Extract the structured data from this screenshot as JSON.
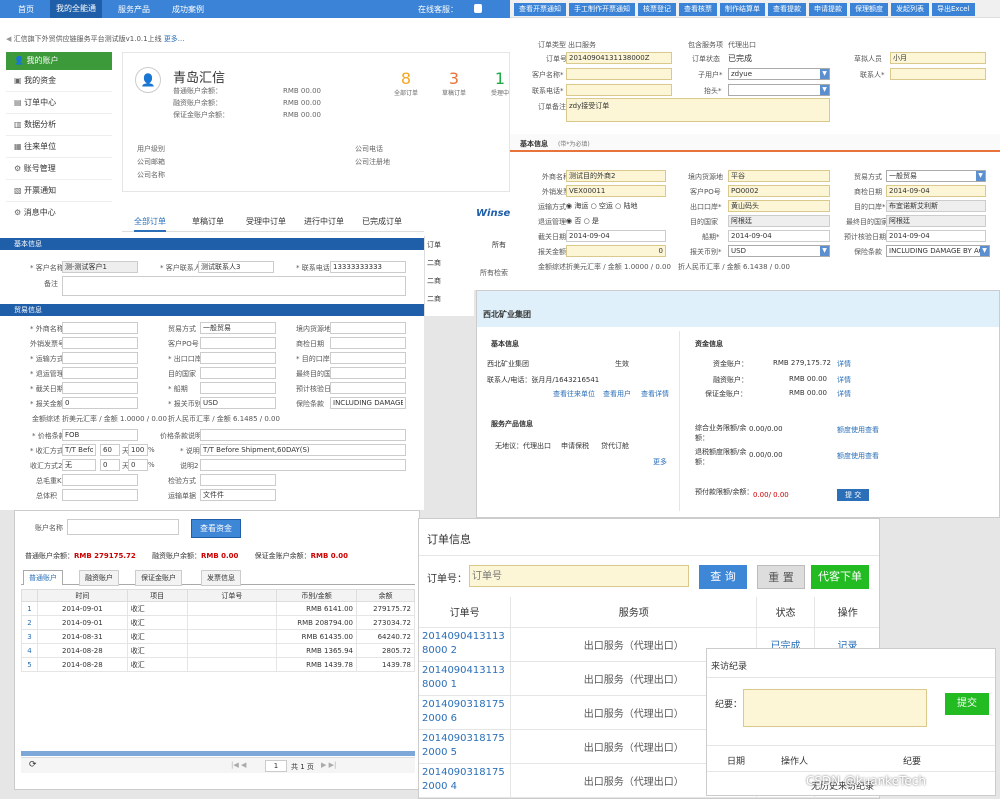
{
  "nav": {
    "items": [
      "首页",
      "我的全能通",
      "服务产品",
      "成功案例"
    ],
    "online": "在线客服："
  },
  "notice": {
    "text": "汇信旗下外贸供应链服务平台测试版v1.0.1上线",
    "more": "更多..."
  },
  "sidebar": {
    "items": [
      "我的账户",
      "我的资金",
      "订单中心",
      "数据分析",
      "往来单位",
      "账号管理",
      "开票通知",
      "消息中心"
    ]
  },
  "profile": {
    "name": "青岛汇信",
    "balances": [
      {
        "label": "普通账户余额：",
        "value": "RMB 00.00"
      },
      {
        "label": "融资账户余额：",
        "value": "RMB 00.00"
      },
      {
        "label": "保证金账户余额：",
        "value": "RMB 00.00"
      }
    ],
    "stats": [
      {
        "num": "8",
        "label": "全部订单"
      },
      {
        "num": "3",
        "label": "草稿订单"
      },
      {
        "num": "1",
        "label": "受理中"
      }
    ],
    "fields_left": [
      "用户级别",
      "公司邮箱",
      "公司名称"
    ],
    "fields_right": [
      "公司电话",
      "公司注册地"
    ]
  },
  "order_tabs": [
    "全部订单",
    "草稿订单",
    "受理中订单",
    "进行中订单",
    "已完成订单"
  ],
  "toolbar": {
    "buttons": [
      "查看开票通知",
      "手工制作开票通知",
      "核票登记",
      "查看核票",
      "制作结算单",
      "查看提款",
      "申请提款",
      "保理额度",
      "发起列表",
      "导出Excel"
    ]
  },
  "order_info": {
    "r1": {
      "type_l": "订单类型",
      "type_v": "出口服务",
      "svc_l": "包含服务项",
      "svc_v": "代理出口"
    },
    "no_l": "订单号",
    "no_v": "20140904131138000Z",
    "status_l": "订单状态",
    "status_v": "已完成",
    "creator_l": "草拟人员",
    "creator_v": "小月",
    "cust_l": "客户名称*",
    "sub_l": "子用户*",
    "sub_v": "zdyue",
    "contact_l": "联系人*",
    "phone_l": "联系电话*",
    "title_l": "抬头*",
    "remark_l": "订单备注",
    "remark_v": "zdy接受订单"
  },
  "basic_r": {
    "title": "基本信息",
    "sub": "(带*为必填)",
    "rows": [
      [
        "外商名称*",
        "测试目的外商2",
        "境内货源地",
        "平谷",
        "贸易方式",
        "一般贸易"
      ],
      [
        "外销发票号",
        "VEX00011",
        "客户PO号",
        "PO0002",
        "商检日期",
        "2014-09-04"
      ],
      [
        "运输方式*",
        "",
        "出口口岸*",
        "黄山码头",
        "目的口岸*",
        "布宜诺斯艾利斯"
      ],
      [
        "退运管理*",
        "",
        "目的国家",
        "阿根廷",
        "最终目的国家",
        "阿根廷"
      ],
      [
        "截关日期*",
        "2014-09-04",
        "船期*",
        "2014-09-04",
        "预计核验日期",
        "2014-09-04"
      ],
      [
        "报关金额*",
        "0",
        "报关币别*",
        "USD",
        "保险条款",
        "INCLUDING DAMAGE BY AC"
      ]
    ],
    "transport": [
      "海运",
      "空运",
      "陆地"
    ],
    "yesno": [
      "否",
      "是"
    ],
    "summary": [
      "金额综述",
      "折美元汇率 / 金额 1.0000 / 0.00",
      "折人民币汇率 / 金额 6.1438 / 0.00"
    ]
  },
  "left_form": {
    "basic": "基本信息",
    "cust_l": "* 客户名称",
    "cust_v": "测-测试客户1",
    "cont_l": "* 客户联系人",
    "cont_v": "测试联系人3",
    "phone_l": "* 联系电话",
    "phone_v": "13333333333",
    "remark_l": "备注",
    "trade": "贸易信息",
    "rows": [
      [
        "* 外商名称",
        "",
        "贸易方式",
        "一般贸易",
        "境内货源地",
        ""
      ],
      [
        "外销发票号",
        "",
        "客户PO号",
        "",
        "商检日期",
        ""
      ],
      [
        "* 运输方式",
        "",
        "* 出口口岸",
        "",
        "* 目的口岸",
        ""
      ],
      [
        "* 退运管理",
        "",
        "目的国家",
        "",
        "最终目的国家",
        ""
      ],
      [
        "* 截关日期",
        "",
        "* 船期",
        "",
        "预计核验日期",
        ""
      ],
      [
        "* 报关金额",
        "0",
        "* 报关币别",
        "USD",
        "保险条款",
        "INCLUDING DAMAGE BY"
      ]
    ],
    "sum": [
      "金额综述",
      "折美元汇率 / 金额 1.0000 / 0.00",
      "折人民币汇率 / 金额 6.1485 / 0.00"
    ],
    "price_l": "* 价格条款",
    "price_v": "FOB",
    "pdesc_l": "价格条款说明",
    "pay1_l": "* 收汇方式1",
    "pay1_v": "T/T Befor",
    "pay1_d": "60",
    "pay1_p": "100",
    "desc1_l": "* 说明1",
    "desc1_v": "T/T Before Shipment,60DAY(S)",
    "pay2_l": "收汇方式2",
    "pay2_v": "无",
    "pay2_d": "0",
    "pay2_p": "0",
    "desc2_l": "说明2",
    "gw_l": "总毛重KG",
    "ins_l": "检验方式",
    "nw_l": "总体积",
    "ship_l": "运输单据",
    "ship_v": "文件件",
    "tian": "天",
    "pct": "%"
  },
  "left_tab": "全部订单",
  "side_list": [
    "订单",
    "二商",
    "二商",
    "二商"
  ],
  "winse": "Winse",
  "side_tab": "所有",
  "side_check": "所有检索",
  "company": {
    "name": "西北矿业集团",
    "basic": "基本信息",
    "basic_name": "西北矿业集团",
    "status": "生效",
    "contact": "联系人/电话：张月月/1643216541",
    "links": [
      "查看往来单位",
      "查看用户",
      "查看详情"
    ],
    "prod": "服务产品信息",
    "prods": [
      "无地议：",
      "代理出口",
      "申请保税",
      "贷代订舱"
    ],
    "more": "更多",
    "fund": "资金信息",
    "funds": [
      {
        "l": "资金账户：",
        "v": "RMB 279,175.72",
        "a": "详情"
      },
      {
        "l": "融资账户：",
        "v": "RMB 00.00",
        "a": "详情"
      },
      {
        "l": "保证金账户：",
        "v": "RMB 00.00",
        "a": "详情"
      }
    ],
    "limits": [
      {
        "l": "综合业务限额/余额：",
        "v": "0.00/0.00",
        "a": "额度使用查看"
      },
      {
        "l": "退税额度限额/余额：",
        "v": "0.00/0.00",
        "a": "额度使用查看"
      }
    ],
    "pre_l": "预付款限额/余额：",
    "pre_v": "0.00/ 0.00",
    "submit": "提 交"
  },
  "funds_panel": {
    "acct_l": "账户名称",
    "btn": "查看资金",
    "sum": [
      {
        "l": "普通账户余额：",
        "v": "RMB 279175.72"
      },
      {
        "l": "融资账户余额：",
        "v": "RMB 0.00"
      },
      {
        "l": "保证金账户余额：",
        "v": "RMB 0.00"
      }
    ],
    "tabs": [
      "普通账户",
      "融资账户",
      "保证金账户",
      "发票信息"
    ],
    "cols": [
      "",
      "时间",
      "项目",
      "订单号",
      "币别/金额",
      "余额"
    ],
    "rows": [
      [
        "1",
        "2014-09-01",
        "收汇",
        "",
        "RMB 6141.00",
        "279175.72"
      ],
      [
        "2",
        "2014-09-01",
        "收汇",
        "",
        "RMB 208794.00",
        "273034.72"
      ],
      [
        "3",
        "2014-08-31",
        "收汇",
        "",
        "RMB 61435.00",
        "64240.72"
      ],
      [
        "4",
        "2014-08-28",
        "收汇",
        "",
        "RMB 1365.94",
        "2805.72"
      ],
      [
        "5",
        "2014-08-28",
        "收汇",
        "",
        "RMB 1439.78",
        "1439.78"
      ]
    ],
    "page": "1",
    "of": "共 1 页"
  },
  "mobile": {
    "title": "订单信息",
    "no_l": "订单号：",
    "no_ph": "订单号",
    "query": "查 询",
    "reset": "重 置",
    "agent": "代客下单",
    "cols": [
      "订单号",
      "服务项",
      "状态",
      "操作"
    ],
    "rows": [
      {
        "no": "20140904131138000 2",
        "svc": "出口服务（代理出口）",
        "st": "已完成",
        "op": "记录"
      },
      {
        "no": "20140904131138000 1",
        "svc": "出口服务（代理出口）",
        "st": "",
        "op": ""
      },
      {
        "no": "20140903181752000 6",
        "svc": "出口服务（代理出口）",
        "st": "",
        "op": ""
      },
      {
        "no": "20140903181752000 5",
        "svc": "出口服务（代理出口）",
        "st": "",
        "op": ""
      },
      {
        "no": "20140903181752000 4",
        "svc": "出口服务（代理出口）",
        "st": "",
        "op": ""
      }
    ]
  },
  "visit": {
    "title": "来访纪录",
    "rec_l": "纪要：",
    "submit": "提交",
    "cols": [
      "日期",
      "操作人",
      "纪要"
    ],
    "empty": "无历史来访纪录"
  },
  "watermark": "CSDN @kuankeTech",
  "colors": {
    "nav": "#3b83d6",
    "green": "#22bb22",
    "blue": "#3e86d6",
    "orange": "#f5a623"
  }
}
